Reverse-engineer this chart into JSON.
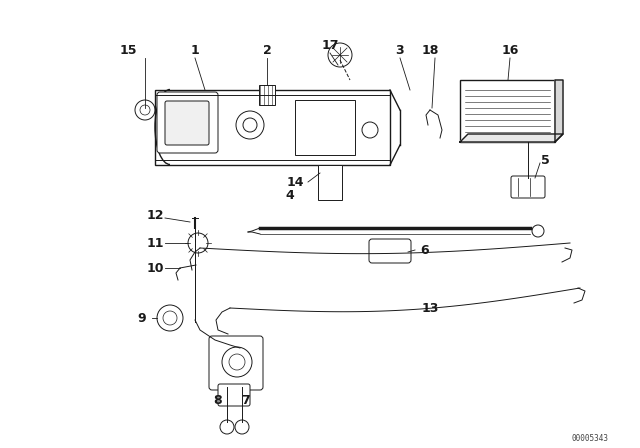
{
  "bg_color": "#ffffff",
  "line_color": "#1a1a1a",
  "figure_width": 6.4,
  "figure_height": 4.48,
  "dpi": 100,
  "watermark": "00005343"
}
